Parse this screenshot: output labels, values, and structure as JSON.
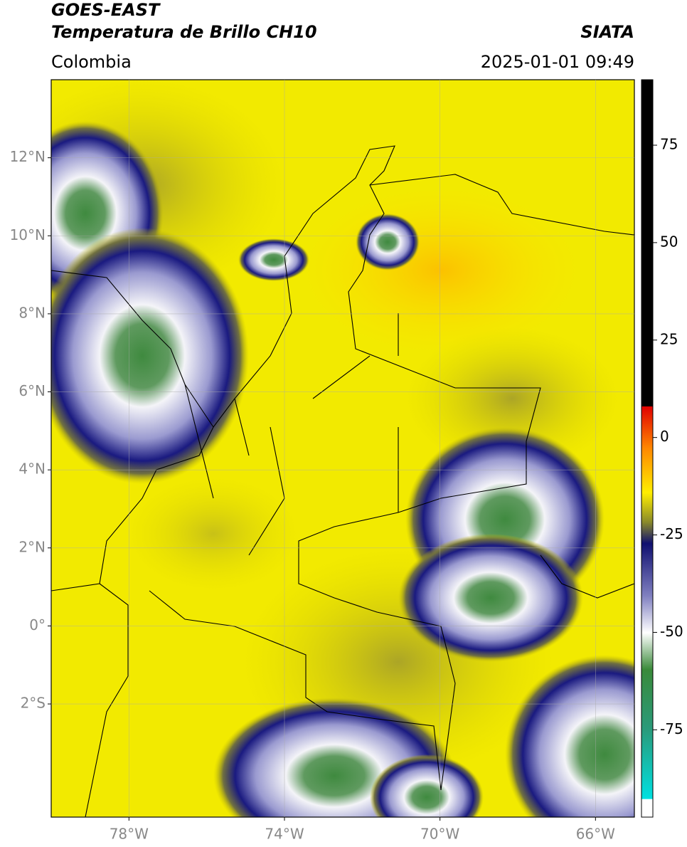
{
  "header": {
    "title": "GOES-EAST",
    "subtitle": "Temperatura de Brillo CH10",
    "region": "Colombia",
    "agency": "SIATA",
    "datetime": "2025-01-01 09:49"
  },
  "map": {
    "lonlim": [
      -80,
      -65
    ],
    "latlim": [
      -4.9,
      14
    ],
    "grid": true,
    "xticks": [
      {
        "value": -78,
        "label": "78°W"
      },
      {
        "value": -74,
        "label": "74°W"
      },
      {
        "value": -70,
        "label": "70°W"
      },
      {
        "value": -66,
        "label": "66°W"
      }
    ],
    "yticks": [
      {
        "value": 12,
        "label": "12°N"
      },
      {
        "value": 10,
        "label": "10°N"
      },
      {
        "value": 8,
        "label": "8°N"
      },
      {
        "value": 6,
        "label": "6°N"
      },
      {
        "value": 4,
        "label": "4°N"
      },
      {
        "value": 2,
        "label": "2°N"
      },
      {
        "value": 0,
        "label": "0°"
      },
      {
        "value": -2,
        "label": "2°S"
      }
    ]
  },
  "colorbar": {
    "lim": [
      -97.4,
      91.8
    ],
    "ticks": [
      75,
      50,
      25,
      0,
      -25,
      -50,
      -75
    ]
  }
}
